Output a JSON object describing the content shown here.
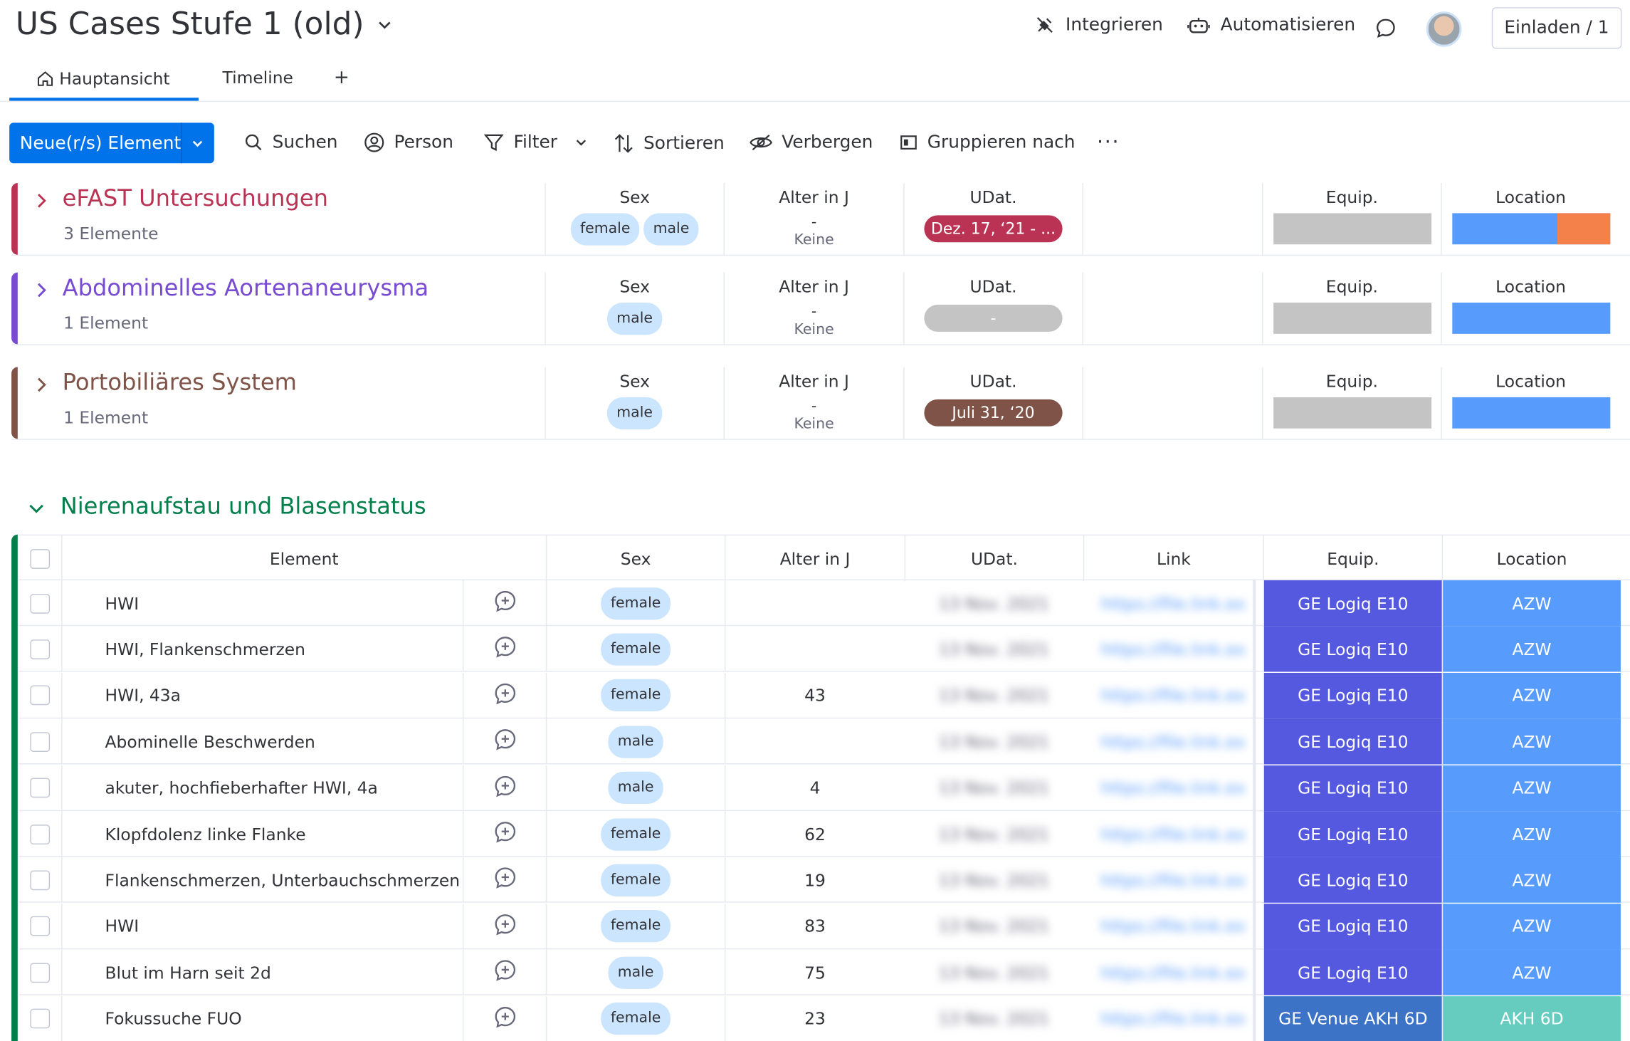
{
  "header": {
    "title": "US Cases Stufe 1 (old)",
    "integrate": "Integrieren",
    "automate": "Automatisieren",
    "invite": "Einladen / 1"
  },
  "tabs": {
    "main": "Hauptansicht",
    "timeline": "Timeline",
    "add": "+"
  },
  "toolbar": {
    "new_item": "Neue(r/s) Element",
    "search": "Suchen",
    "person": "Person",
    "filter": "Filter",
    "sort": "Sortieren",
    "hide": "Verbergen",
    "group_by": "Gruppieren nach",
    "more": "···"
  },
  "columns": {
    "element": "Element",
    "sex": "Sex",
    "age": "Alter in J",
    "date": "UDat.",
    "link": "Link",
    "equip": "Equip.",
    "location": "Location"
  },
  "collapsed_groups": [
    {
      "name": "eFAST Untersuchungen",
      "count": "3 Elemente",
      "color": "#bb3354",
      "sex": [
        "female",
        "male"
      ],
      "age_dash": "-",
      "age_none": "Keine",
      "date": "Dez. 17, ‘21 - ...",
      "date_color": "#bb3354",
      "loc_split": true
    },
    {
      "name": "Abdominelles Aortenaneurysma",
      "count": "1 Element",
      "color": "#784bd1",
      "sex": [
        "male"
      ],
      "age_dash": "-",
      "age_none": "Keine",
      "date": "-",
      "date_color": "#c4c4c4",
      "loc_split": false
    },
    {
      "name": "Portobiliäres System",
      "count": "1 Element",
      "color": "#7f5347",
      "sex": [
        "male"
      ],
      "age_dash": "-",
      "age_none": "Keine",
      "date": "Juli 31, ‘20",
      "date_color": "#7f5347",
      "loc_split": false
    }
  ],
  "expanded_group": {
    "name": "Nierenaufstau und Blasenstatus",
    "color": "#037f4c",
    "rows": [
      {
        "element": "HWI",
        "sex": "female",
        "age": "",
        "date": "13 Nov. 2021",
        "link": "https://file.link.ex",
        "equip": "GE Logiq E10",
        "location": "AZW"
      },
      {
        "element": "HWI, Flankenschmerzen",
        "sex": "female",
        "age": "",
        "date": "13 Nov. 2021",
        "link": "https://file.link.ex",
        "equip": "GE Logiq E10",
        "location": "AZW"
      },
      {
        "element": "HWI, 43a",
        "sex": "female",
        "age": "43",
        "date": "13 Nov. 2021",
        "link": "https://file.link.ex",
        "equip": "GE Logiq E10",
        "location": "AZW"
      },
      {
        "element": "Abominelle Beschwerden",
        "sex": "male",
        "age": "",
        "date": "13 Nov. 2021",
        "link": "https://file.link.ex",
        "equip": "GE Logiq E10",
        "location": "AZW"
      },
      {
        "element": "akuter, hochfieberhafter HWI, 4a",
        "sex": "male",
        "age": "4",
        "date": "13 Nov. 2021",
        "link": "https://file.link.ex",
        "equip": "GE Logiq E10",
        "location": "AZW"
      },
      {
        "element": "Klopfdolenz linke Flanke",
        "sex": "female",
        "age": "62",
        "date": "13 Nov. 2021",
        "link": "https://file.link.ex",
        "equip": "GE Logiq E10",
        "location": "AZW"
      },
      {
        "element": "Flankenschmerzen, Unterbauchschmerzen",
        "sex": "female",
        "age": "19",
        "date": "13 Nov. 2021",
        "link": "https://file.link.ex",
        "equip": "GE Logiq E10",
        "location": "AZW"
      },
      {
        "element": "HWI",
        "sex": "female",
        "age": "83",
        "date": "13 Nov. 2021",
        "link": "https://file.link.ex",
        "equip": "GE Logiq E10",
        "location": "AZW"
      },
      {
        "element": "Blut im Harn seit 2d",
        "sex": "male",
        "age": "75",
        "date": "13 Nov. 2021",
        "link": "https://file.link.ex",
        "equip": "GE Logiq E10",
        "location": "AZW"
      },
      {
        "element": "Fokussuche FUO",
        "sex": "female",
        "age": "23",
        "date": "13 Nov. 2021",
        "link": "https://file.link.ex",
        "equip": "GE Venue AKH 6D",
        "location": "AKH 6D"
      }
    ]
  }
}
